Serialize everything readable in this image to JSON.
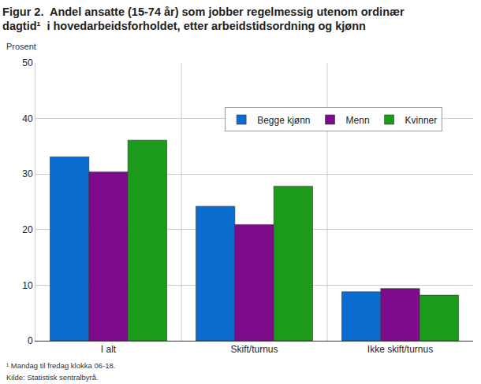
{
  "chart_data": {
    "type": "bar",
    "title": "Figur 2.  Andel ansatte (15-74 år) som jobber regelmessig utenom ordinær\ndagtid¹  i hovedarbeidsforholdet, etter arbeidstidsordning og kjønn",
    "y_label": "Prosent",
    "notes": [
      "¹ Mandag til fredag klokka 06-18.",
      "Kilde: Statistisk sentralbyrå."
    ],
    "categories": [
      "I alt",
      "Skift/turnus",
      "Ikke skift/turnus"
    ],
    "series": [
      {
        "name": "Begge kjønn",
        "color": "#0a6ccf",
        "values": [
          33.1,
          24.2,
          8.8
        ]
      },
      {
        "name": "Menn",
        "color": "#7f0a8c",
        "values": [
          30.4,
          20.9,
          9.4
        ]
      },
      {
        "name": "Kvinner",
        "color": "#1b9a1b",
        "values": [
          36.1,
          27.8,
          8.2
        ]
      }
    ],
    "ylim": [
      0,
      50
    ],
    "yticks": [
      0,
      10,
      20,
      30,
      40,
      50
    ],
    "grid": true,
    "legend": "upper right"
  }
}
